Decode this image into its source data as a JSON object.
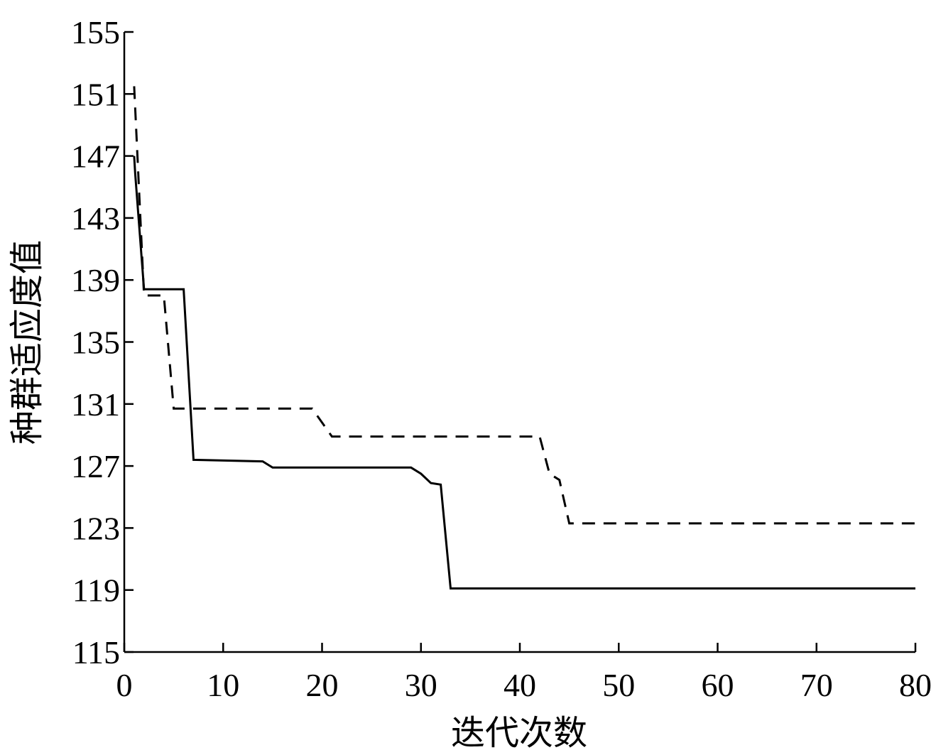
{
  "chart_data": {
    "type": "line",
    "title": "",
    "xlabel": "迭代次数",
    "ylabel": "种群适应度值",
    "xlim": [
      0,
      80
    ],
    "ylim": [
      115,
      155
    ],
    "x_ticks": [
      0,
      10,
      20,
      30,
      40,
      50,
      60,
      70,
      80
    ],
    "y_ticks": [
      115,
      119,
      123,
      127,
      131,
      135,
      139,
      143,
      147,
      151,
      155
    ],
    "grid": false,
    "legend": "none",
    "colors": {
      "line": "#000000",
      "axis": "#000000",
      "background": "#ffffff"
    },
    "series": [
      {
        "style": "solid",
        "points": [
          [
            1,
            147
          ],
          [
            1.1,
            145.9
          ],
          [
            2,
            138.4
          ],
          [
            6,
            138.4
          ],
          [
            7,
            127.4
          ],
          [
            14,
            127.3
          ],
          [
            15,
            126.9
          ],
          [
            29,
            126.9
          ],
          [
            30,
            126.5
          ],
          [
            31,
            125.9
          ],
          [
            32,
            125.8
          ],
          [
            33,
            119.1
          ],
          [
            80,
            119.1
          ]
        ]
      },
      {
        "style": "dashed",
        "points": [
          [
            1,
            151.5
          ],
          [
            2,
            138
          ],
          [
            4,
            138
          ],
          [
            5,
            130.7
          ],
          [
            19,
            130.7
          ],
          [
            21,
            128.9
          ],
          [
            42,
            128.9
          ],
          [
            43,
            126.5
          ],
          [
            44,
            126.1
          ],
          [
            45,
            123.3
          ],
          [
            80,
            123.3
          ]
        ]
      }
    ]
  }
}
